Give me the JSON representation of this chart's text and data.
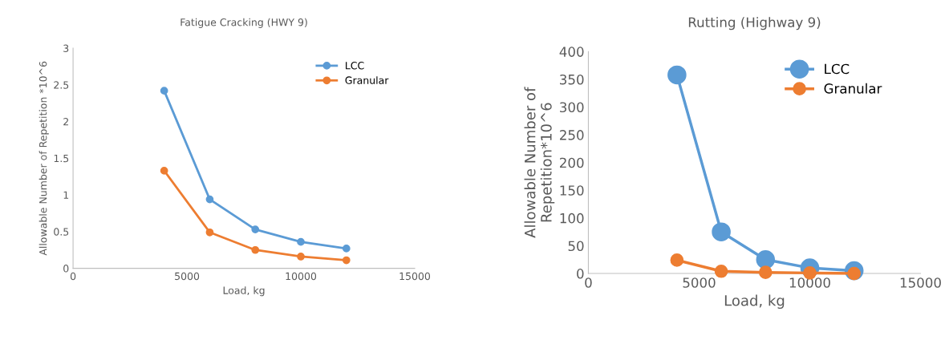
{
  "chart_data": [
    {
      "type": "line",
      "title": "Fatigue Cracking (HWY 9)",
      "xlabel": "Load, kg",
      "ylabel": "Allowable Number of Repetition *10^6",
      "x": [
        4000,
        6000,
        8000,
        10000,
        12000
      ],
      "series": [
        {
          "name": "LCC",
          "color": "#5b9bd5",
          "values": [
            2.42,
            0.94,
            0.53,
            0.36,
            0.27
          ]
        },
        {
          "name": "Granular",
          "color": "#ed7d31",
          "values": [
            1.33,
            0.49,
            0.25,
            0.16,
            0.11
          ]
        }
      ],
      "xlim": [
        0,
        15000
      ],
      "xticks": [
        0,
        5000,
        10000,
        15000
      ],
      "ylim": [
        0,
        3
      ],
      "yticks": [
        0,
        0.5,
        1,
        1.5,
        2,
        2.5,
        3
      ],
      "grid": false,
      "legend": "top right",
      "marker": "circle",
      "line_style": "solid"
    },
    {
      "type": "line",
      "title": "Rutting (Highway 9)",
      "xlabel": "Load, kg",
      "ylabel": "Allowable Number of\nRepetition*10^6",
      "x": [
        4000,
        6000,
        8000,
        10000,
        12000
      ],
      "series": [
        {
          "name": "LCC",
          "color": "#5b9bd5",
          "values": [
            358,
            75,
            25,
            10,
            5
          ]
        },
        {
          "name": "Granular",
          "color": "#ed7d31",
          "values": [
            24,
            4,
            2,
            1,
            0
          ]
        }
      ],
      "xlim": [
        0,
        15000
      ],
      "xticks": [
        0,
        5000,
        10000,
        15000
      ],
      "ylim": [
        0,
        400
      ],
      "yticks": [
        0,
        50,
        100,
        150,
        200,
        250,
        300,
        350,
        400
      ],
      "grid": false,
      "legend": "top right",
      "marker": "circle",
      "line_style": "solid"
    }
  ]
}
